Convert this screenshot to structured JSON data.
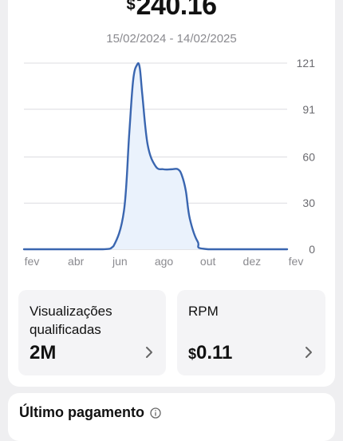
{
  "summary": {
    "currency_symbol": "$",
    "total": "240.16",
    "period": "15/02/2024 - 14/02/2025"
  },
  "chart_data": {
    "type": "area",
    "x_labels": [
      "fev",
      "abr",
      "jun",
      "ago",
      "out",
      "dez",
      "fev"
    ],
    "y_ticks": [
      0,
      30,
      60,
      91,
      121
    ],
    "ylim": [
      0,
      121
    ],
    "grid": true,
    "series": [
      {
        "t": [
          0,
          0.15,
          0.3,
          0.34,
          0.38,
          0.4,
          0.415,
          0.43,
          0.44,
          0.45,
          0.47,
          0.5,
          0.53,
          0.56,
          0.585,
          0.6,
          0.615,
          0.63,
          0.66,
          0.7,
          1.0
        ],
        "values": [
          0,
          0,
          0,
          2,
          25,
          75,
          110,
          120,
          118,
          100,
          68,
          54,
          52,
          52,
          52,
          48,
          38,
          20,
          5,
          0,
          0
        ]
      }
    ],
    "line_color": "#3a66b0",
    "fill_color": "#eaf2fc"
  },
  "stats": [
    {
      "label_line1": "Visualizações",
      "label_line2": "qualificadas",
      "value": "2M",
      "currency": ""
    },
    {
      "label_line1": "RPM",
      "label_line2": "",
      "value": "0.11",
      "currency": "$"
    }
  ],
  "last_payment": {
    "title": "Último pagamento"
  },
  "icons": {
    "chevron": "chevron-right-icon",
    "info": "info-icon"
  }
}
